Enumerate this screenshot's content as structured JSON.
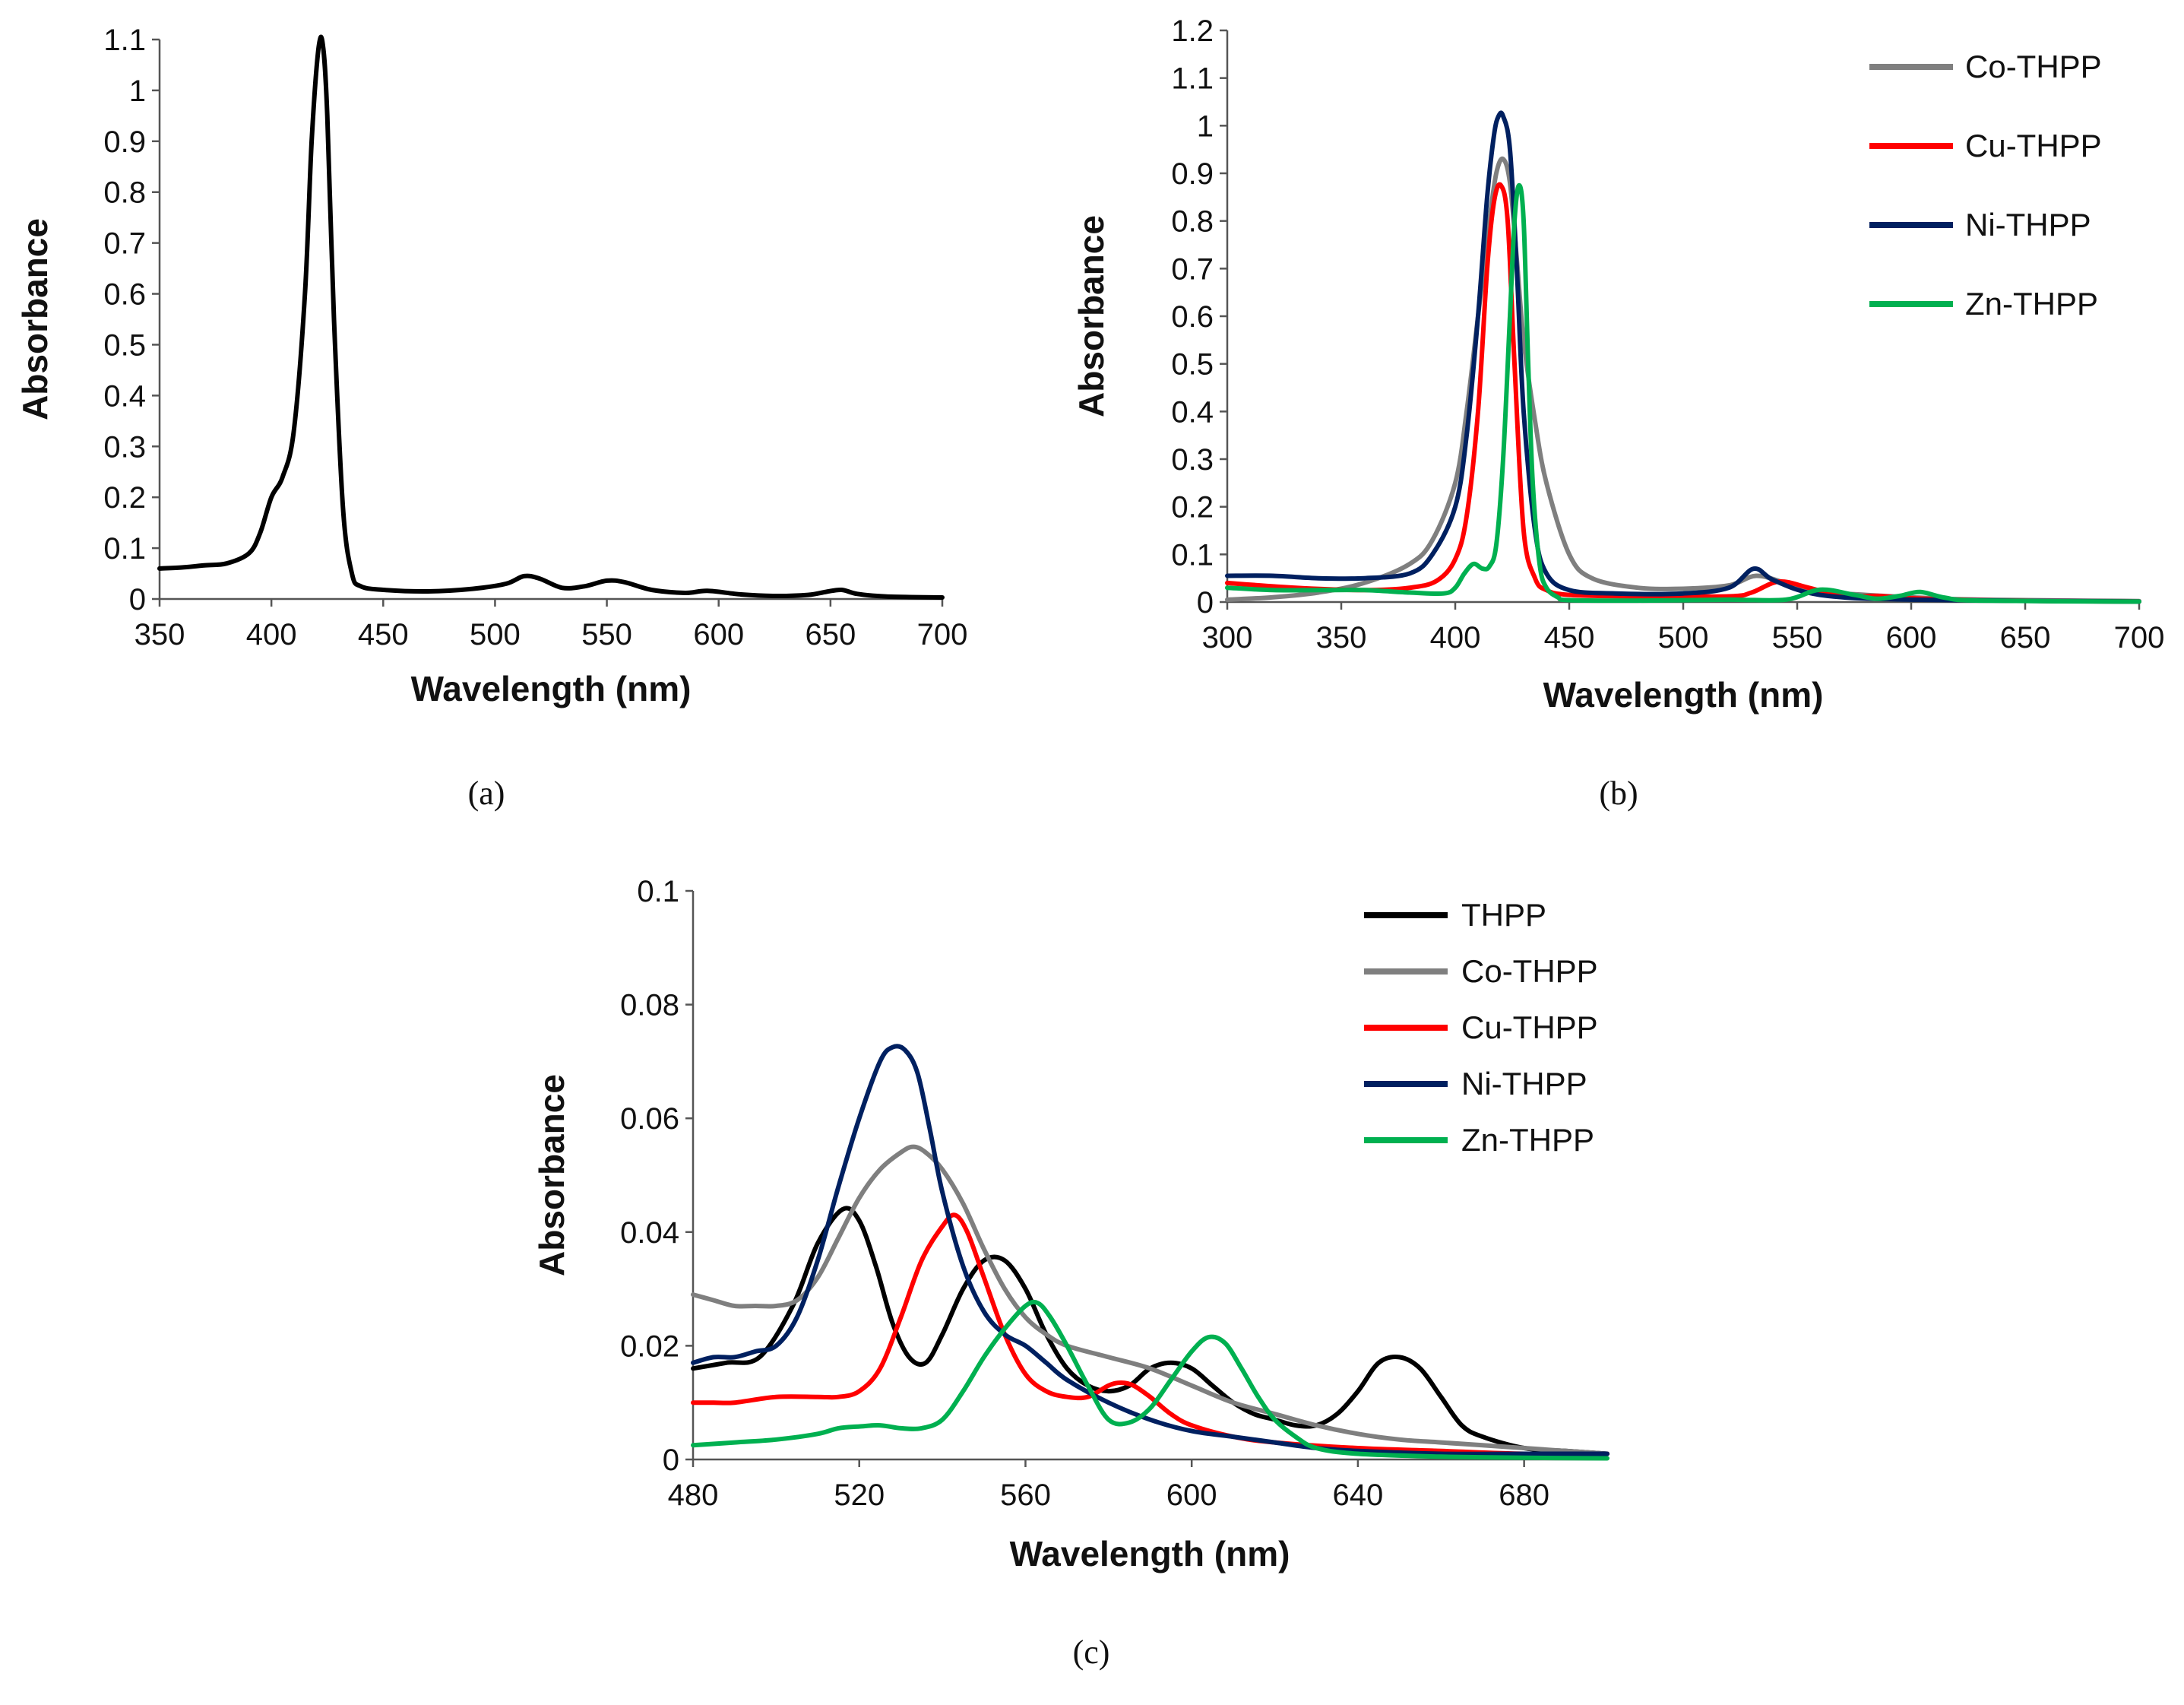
{
  "chart_data": [
    {
      "panel": "a",
      "panel_label": "(a)",
      "type": "line",
      "xlabel": "Wavelength (nm)",
      "ylabel": "Absorbance",
      "xlim": [
        350,
        700
      ],
      "ylim": [
        0,
        1.1
      ],
      "xticks": [
        350,
        400,
        450,
        500,
        550,
        600,
        650,
        700
      ],
      "yticks": [
        0,
        0.1,
        0.2,
        0.3,
        0.4,
        0.5,
        0.6,
        0.7,
        0.8,
        0.9,
        1,
        1.1
      ],
      "legend": false,
      "series": [
        {
          "name": "THPP",
          "color": "#000000",
          "x": [
            350,
            360,
            370,
            380,
            390,
            395,
            400,
            405,
            410,
            415,
            418,
            421,
            423,
            425,
            428,
            432,
            436,
            440,
            450,
            470,
            490,
            505,
            513,
            520,
            530,
            540,
            550,
            558,
            570,
            585,
            595,
            610,
            625,
            640,
            648,
            655,
            662,
            675,
            700
          ],
          "y": [
            0.06,
            0.062,
            0.066,
            0.07,
            0.09,
            0.13,
            0.2,
            0.24,
            0.33,
            0.6,
            0.9,
            1.08,
            1.09,
            0.95,
            0.55,
            0.18,
            0.05,
            0.025,
            0.018,
            0.015,
            0.02,
            0.03,
            0.045,
            0.04,
            0.022,
            0.025,
            0.036,
            0.033,
            0.018,
            0.012,
            0.016,
            0.009,
            0.006,
            0.008,
            0.014,
            0.018,
            0.01,
            0.005,
            0.003
          ]
        }
      ]
    },
    {
      "panel": "b",
      "panel_label": "(b)",
      "type": "line",
      "xlabel": "Wavelength (nm)",
      "ylabel": "Absorbance",
      "xlim": [
        300,
        700
      ],
      "ylim": [
        0,
        1.2
      ],
      "xticks": [
        300,
        350,
        400,
        450,
        500,
        550,
        600,
        650,
        700
      ],
      "yticks": [
        0,
        0.1,
        0.2,
        0.3,
        0.4,
        0.5,
        0.6,
        0.7,
        0.8,
        0.9,
        1,
        1.1,
        1.2
      ],
      "legend": true,
      "legend_position": "top-right",
      "series": [
        {
          "name": "Co-THPP",
          "color": "#7f7f7f",
          "x": [
            300,
            320,
            340,
            360,
            380,
            390,
            400,
            405,
            410,
            415,
            418,
            421,
            424,
            427,
            430,
            435,
            440,
            450,
            460,
            480,
            500,
            520,
            532,
            545,
            560,
            580,
            600,
            630,
            700
          ],
          "y": [
            0.005,
            0.01,
            0.02,
            0.04,
            0.08,
            0.13,
            0.25,
            0.4,
            0.6,
            0.8,
            0.9,
            0.93,
            0.88,
            0.72,
            0.55,
            0.38,
            0.25,
            0.1,
            0.05,
            0.03,
            0.028,
            0.035,
            0.055,
            0.04,
            0.022,
            0.015,
            0.01,
            0.005,
            0.002
          ]
        },
        {
          "name": "Cu-THPP",
          "color": "#ff0000",
          "x": [
            300,
            330,
            360,
            380,
            392,
            400,
            405,
            410,
            414,
            417,
            420,
            423,
            426,
            430,
            435,
            440,
            450,
            480,
            520,
            530,
            542,
            555,
            570,
            585,
            600,
            640,
            700
          ],
          "y": [
            0.04,
            0.03,
            0.025,
            0.03,
            0.045,
            0.09,
            0.18,
            0.4,
            0.7,
            0.84,
            0.875,
            0.8,
            0.5,
            0.15,
            0.05,
            0.025,
            0.015,
            0.012,
            0.012,
            0.02,
            0.043,
            0.03,
            0.012,
            0.013,
            0.008,
            0.003,
            0.001
          ]
        },
        {
          "name": "Ni-THPP",
          "color": "#002060",
          "x": [
            300,
            320,
            340,
            360,
            380,
            390,
            400,
            405,
            410,
            414,
            417,
            419,
            421,
            424,
            427,
            430,
            435,
            440,
            450,
            470,
            500,
            520,
            531,
            540,
            560,
            600,
            700
          ],
          "y": [
            0.055,
            0.055,
            0.05,
            0.05,
            0.06,
            0.1,
            0.2,
            0.35,
            0.6,
            0.85,
            0.98,
            1.02,
            1.02,
            0.95,
            0.7,
            0.4,
            0.15,
            0.06,
            0.025,
            0.018,
            0.018,
            0.03,
            0.07,
            0.045,
            0.015,
            0.005,
            0.001
          ]
        },
        {
          "name": "Zn-THPP",
          "color": "#00b050",
          "x": [
            300,
            320,
            340,
            360,
            380,
            395,
            400,
            404,
            408,
            412,
            415,
            418,
            421,
            424,
            426,
            428,
            430,
            432,
            434,
            437,
            440,
            445,
            450,
            480,
            520,
            545,
            560,
            575,
            585,
            595,
            604,
            615,
            630,
            700
          ],
          "y": [
            0.03,
            0.025,
            0.025,
            0.025,
            0.02,
            0.018,
            0.03,
            0.06,
            0.08,
            0.07,
            0.075,
            0.12,
            0.3,
            0.6,
            0.8,
            0.875,
            0.8,
            0.5,
            0.25,
            0.08,
            0.03,
            0.01,
            0.004,
            0.003,
            0.005,
            0.005,
            0.026,
            0.015,
            0.007,
            0.013,
            0.021,
            0.009,
            0.003,
            0.001
          ]
        }
      ]
    },
    {
      "panel": "c",
      "panel_label": "(c)",
      "type": "line",
      "xlabel": "Wavelength (nm)",
      "ylabel": "Absorbance",
      "xlim": [
        480,
        700
      ],
      "ylim": [
        0,
        0.1
      ],
      "xticks": [
        480,
        520,
        560,
        600,
        640,
        680
      ],
      "yticks": [
        0,
        0.02,
        0.04,
        0.06,
        0.08,
        0.1
      ],
      "ytick_labels": [
        "0",
        "0.02",
        "0.04",
        "0.06",
        "0.08",
        "0.1"
      ],
      "legend": true,
      "legend_position": "top-right",
      "series": [
        {
          "name": "THPP",
          "color": "#000000",
          "x": [
            480,
            488,
            496,
            504,
            510,
            516,
            520,
            524,
            528,
            532,
            536,
            540,
            545,
            550,
            555,
            560,
            565,
            570,
            575,
            580,
            585,
            590,
            595,
            600,
            605,
            610,
            615,
            620,
            625,
            630,
            635,
            640,
            645,
            650,
            655,
            660,
            665,
            670,
            680,
            690,
            700
          ],
          "y": [
            0.016,
            0.017,
            0.018,
            0.027,
            0.038,
            0.044,
            0.042,
            0.034,
            0.024,
            0.018,
            0.017,
            0.022,
            0.03,
            0.035,
            0.035,
            0.03,
            0.022,
            0.016,
            0.013,
            0.012,
            0.013,
            0.016,
            0.017,
            0.016,
            0.013,
            0.01,
            0.008,
            0.007,
            0.006,
            0.006,
            0.008,
            0.012,
            0.017,
            0.018,
            0.016,
            0.011,
            0.006,
            0.004,
            0.002,
            0.0015,
            0.001
          ]
        },
        {
          "name": "Co-THPP",
          "color": "#7f7f7f",
          "x": [
            480,
            485,
            490,
            495,
            500,
            505,
            510,
            515,
            520,
            525,
            530,
            533,
            536,
            540,
            545,
            550,
            555,
            560,
            565,
            570,
            580,
            590,
            600,
            610,
            620,
            630,
            640,
            650,
            660,
            670,
            680,
            690,
            700
          ],
          "y": [
            0.029,
            0.028,
            0.027,
            0.027,
            0.027,
            0.028,
            0.032,
            0.039,
            0.046,
            0.051,
            0.054,
            0.055,
            0.054,
            0.051,
            0.045,
            0.037,
            0.03,
            0.025,
            0.022,
            0.02,
            0.018,
            0.016,
            0.013,
            0.01,
            0.008,
            0.006,
            0.0045,
            0.0035,
            0.003,
            0.0025,
            0.002,
            0.0015,
            0.001
          ]
        },
        {
          "name": "Cu-THPP",
          "color": "#ff0000",
          "x": [
            480,
            485,
            490,
            500,
            510,
            515,
            520,
            525,
            530,
            535,
            540,
            543,
            546,
            550,
            555,
            560,
            565,
            570,
            575,
            580,
            583,
            586,
            590,
            595,
            600,
            610,
            620,
            640,
            660,
            680,
            700
          ],
          "y": [
            0.01,
            0.01,
            0.01,
            0.011,
            0.011,
            0.011,
            0.012,
            0.016,
            0.025,
            0.035,
            0.041,
            0.043,
            0.04,
            0.032,
            0.022,
            0.015,
            0.012,
            0.011,
            0.011,
            0.013,
            0.0135,
            0.013,
            0.011,
            0.008,
            0.006,
            0.004,
            0.003,
            0.002,
            0.0015,
            0.001,
            0.001
          ]
        },
        {
          "name": "Ni-THPP",
          "color": "#002060",
          "x": [
            480,
            485,
            490,
            495,
            500,
            505,
            510,
            515,
            520,
            525,
            528,
            531,
            534,
            537,
            540,
            545,
            550,
            555,
            560,
            565,
            570,
            580,
            590,
            600,
            610,
            620,
            630,
            640,
            660,
            680,
            700
          ],
          "y": [
            0.017,
            0.018,
            0.018,
            0.019,
            0.02,
            0.025,
            0.035,
            0.048,
            0.06,
            0.07,
            0.0725,
            0.072,
            0.068,
            0.058,
            0.047,
            0.034,
            0.026,
            0.022,
            0.02,
            0.017,
            0.014,
            0.01,
            0.007,
            0.005,
            0.004,
            0.003,
            0.002,
            0.0015,
            0.001,
            0.001,
            0.001
          ]
        },
        {
          "name": "Zn-THPP",
          "color": "#00b050",
          "x": [
            480,
            490,
            500,
            510,
            515,
            520,
            525,
            530,
            535,
            540,
            545,
            550,
            555,
            560,
            563,
            566,
            570,
            575,
            580,
            585,
            590,
            595,
            600,
            604,
            608,
            612,
            616,
            620,
            625,
            630,
            640,
            660,
            680,
            700
          ],
          "y": [
            0.0025,
            0.003,
            0.0035,
            0.0045,
            0.0055,
            0.0058,
            0.006,
            0.0055,
            0.0055,
            0.007,
            0.012,
            0.018,
            0.023,
            0.027,
            0.0275,
            0.025,
            0.02,
            0.013,
            0.007,
            0.0065,
            0.009,
            0.014,
            0.019,
            0.0215,
            0.0205,
            0.016,
            0.011,
            0.007,
            0.004,
            0.002,
            0.001,
            0.0005,
            0.0003,
            0.0002
          ]
        }
      ]
    }
  ]
}
